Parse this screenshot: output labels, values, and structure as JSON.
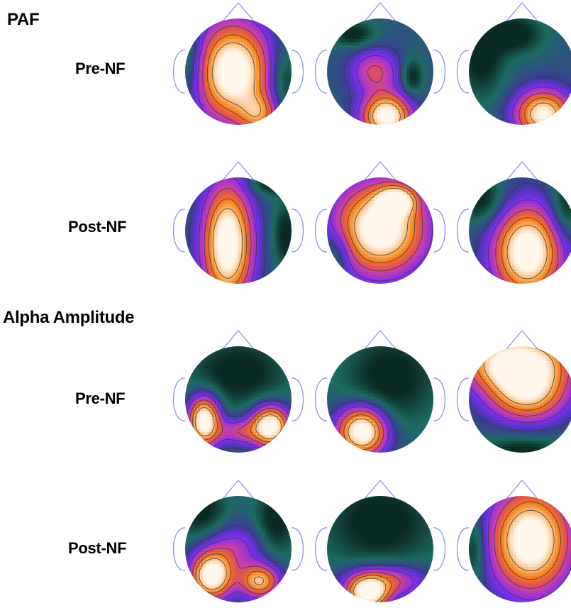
{
  "sections": [
    {
      "title": "PAF",
      "rows": [
        {
          "label": "Pre-NF",
          "maps": [
            {
              "blobs": [
                [
                  0.45,
                  0.5,
                  0.33,
                  0.43,
                  1.0
                ],
                [
                  0.7,
                  0.9,
                  0.18,
                  0.18,
                  0.45
                ]
              ],
              "low": [
                [
                  0.03,
                  0.4,
                  0.17,
                  0.35
                ],
                [
                  0.92,
                  0.6,
                  0.15,
                  0.35
                ]
              ]
            },
            {
              "blobs": [
                [
                  0.56,
                  0.92,
                  0.22,
                  0.2,
                  0.95
                ],
                [
                  0.45,
                  0.5,
                  0.22,
                  0.2,
                  0.4
                ]
              ],
              "low": [
                [
                  0.8,
                  0.55,
                  0.1,
                  0.18
                ],
                [
                  0.25,
                  0.15,
                  0.2,
                  0.12
                ]
              ]
            },
            {
              "blobs": [
                [
                  0.7,
                  0.9,
                  0.25,
                  0.22,
                  0.85
                ]
              ],
              "low": [
                [
                  0.12,
                  0.35,
                  0.22,
                  0.4
                ],
                [
                  0.45,
                  0.15,
                  0.25,
                  0.18
                ]
              ]
            }
          ]
        },
        {
          "label": "Post-NF",
          "maps": [
            {
              "blobs": [
                [
                  0.4,
                  0.62,
                  0.22,
                  0.52,
                  1.0
                ]
              ],
              "low": [
                [
                  0.8,
                  0.05,
                  0.2,
                  0.12
                ],
                [
                  0.95,
                  0.55,
                  0.12,
                  0.3
                ]
              ]
            },
            {
              "blobs": [
                [
                  0.5,
                  0.48,
                  0.4,
                  0.4,
                  1.0
                ],
                [
                  0.65,
                  0.22,
                  0.16,
                  0.12,
                  0.8
                ]
              ],
              "low": [
                [
                  0.1,
                  0.7,
                  0.15,
                  0.22
                ]
              ]
            },
            {
              "blobs": [
                [
                  0.55,
                  0.7,
                  0.3,
                  0.4,
                  1.0
                ]
              ],
              "low": [
                [
                  0.12,
                  0.2,
                  0.22,
                  0.25
                ],
                [
                  0.9,
                  0.3,
                  0.15,
                  0.3
                ]
              ]
            }
          ]
        }
      ]
    },
    {
      "title": "Alpha Amplitude",
      "rows": [
        {
          "label": "Pre-NF",
          "maps": [
            {
              "blobs": [
                [
                  0.18,
                  0.7,
                  0.14,
                  0.22,
                  1.0
                ],
                [
                  0.8,
                  0.75,
                  0.17,
                  0.18,
                  1.0
                ],
                [
                  0.5,
                  0.8,
                  0.2,
                  0.12,
                  0.35
                ]
              ],
              "low": [
                [
                  0.5,
                  0.25,
                  0.48,
                  0.35
                ]
              ]
            },
            {
              "blobs": [
                [
                  0.33,
                  0.8,
                  0.22,
                  0.22,
                  1.0
                ]
              ],
              "low": [
                [
                  0.6,
                  0.3,
                  0.45,
                  0.45
                ]
              ]
            },
            {
              "blobs": [
                [
                  0.45,
                  0.15,
                  0.45,
                  0.25,
                  1.0
                ],
                [
                  0.55,
                  0.45,
                  0.35,
                  0.25,
                  0.7
                ]
              ],
              "low": [
                [
                  0.5,
                  1.0,
                  0.4,
                  0.15
                ]
              ]
            }
          ]
        },
        {
          "label": "Post-NF",
          "maps": [
            {
              "blobs": [
                [
                  0.25,
                  0.75,
                  0.18,
                  0.2,
                  1.0
                ],
                [
                  0.7,
                  0.8,
                  0.18,
                  0.15,
                  0.7
                ],
                [
                  0.45,
                  0.5,
                  0.3,
                  0.22,
                  0.3
                ]
              ],
              "low": [
                [
                  0.15,
                  0.15,
                  0.25,
                  0.3
                ],
                [
                  0.85,
                  0.25,
                  0.2,
                  0.35
                ]
              ]
            },
            {
              "blobs": [
                [
                  0.38,
                  0.92,
                  0.18,
                  0.15,
                  0.95
                ],
                [
                  0.55,
                  0.8,
                  0.35,
                  0.15,
                  0.45
                ]
              ],
              "low": [
                [
                  0.5,
                  0.25,
                  0.55,
                  0.45
                ]
              ]
            },
            {
              "blobs": [
                [
                  0.58,
                  0.42,
                  0.35,
                  0.45,
                  1.0
                ]
              ],
              "low": [
                [
                  0.05,
                  0.5,
                  0.12,
                  0.3
                ]
              ]
            }
          ]
        }
      ]
    }
  ],
  "colors": {
    "ramp": [
      "#0b2a24",
      "#1d6b62",
      "#3d3b9a",
      "#7a2df0",
      "#c23cb0",
      "#e85a3f",
      "#f7891f",
      "#f9c48a",
      "#fff6ec"
    ],
    "head_outline": "#8e94e0",
    "contour": "#3a3a3a"
  }
}
